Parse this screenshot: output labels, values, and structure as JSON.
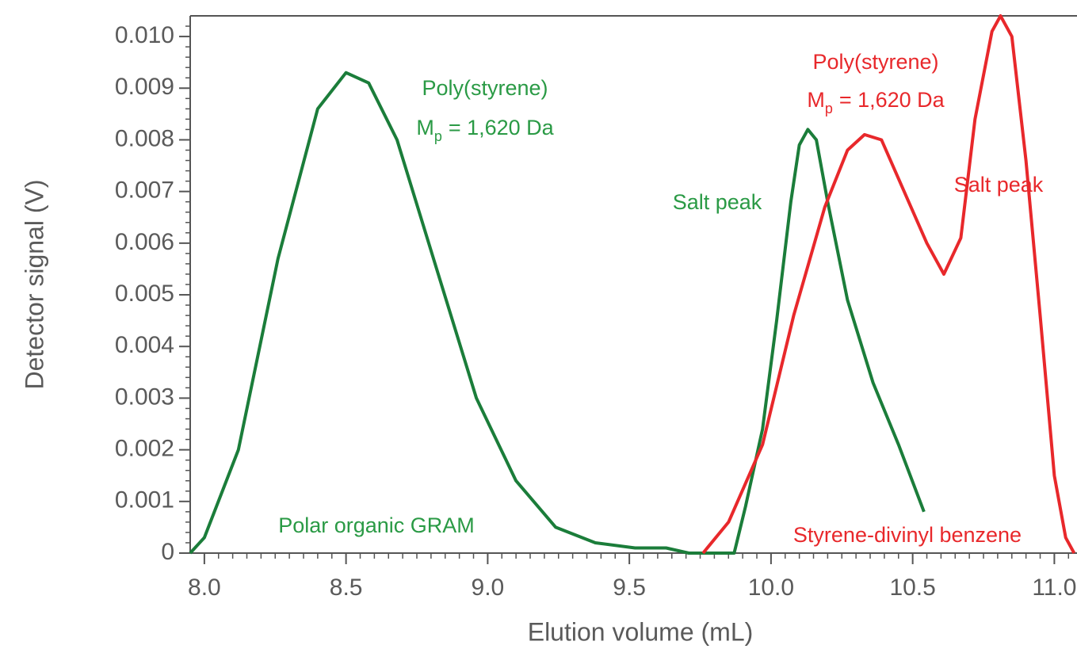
{
  "chart_data": {
    "type": "line",
    "x_label": "Elution volume (mL)",
    "y_label": "Detector signal (V)",
    "xlim": [
      7.95,
      11.08
    ],
    "ylim": [
      0,
      0.0104
    ],
    "xticks": [
      {
        "value": 8.0,
        "label": "8.0"
      },
      8.5,
      {
        "value": 9.0,
        "label": "9.0"
      },
      9.5,
      {
        "value": 10.0,
        "label": "10.0"
      },
      10.5,
      {
        "value": 11.0,
        "label": "11.0"
      }
    ],
    "yticks": [
      0,
      0.001,
      0.002,
      0.003,
      0.004,
      0.005,
      0.006,
      0.007,
      0.008,
      0.009,
      {
        "value": 0.01,
        "label": "0.010"
      }
    ],
    "series": [
      {
        "color": "#1b7d3a",
        "x": [
          7.95,
          8.0,
          8.12,
          8.26,
          8.4,
          8.5,
          8.58,
          8.68,
          8.82,
          8.96,
          9.1,
          9.24,
          9.38,
          9.52,
          9.63,
          9.71,
          9.8,
          9.87,
          9.91,
          9.97,
          10.02,
          10.07,
          10.1,
          10.13,
          10.16,
          10.2,
          10.27,
          10.36,
          10.45,
          10.54
        ],
        "values": [
          0,
          0.0003,
          0.002,
          0.0057,
          0.0086,
          0.0093,
          0.0091,
          0.008,
          0.0055,
          0.003,
          0.0014,
          0.0005,
          0.0002,
          0.0001,
          0.0001,
          0,
          0,
          0,
          0.0009,
          0.0024,
          0.0045,
          0.0068,
          0.0079,
          0.0082,
          0.008,
          0.0068,
          0.0049,
          0.0033,
          0.0021,
          0.0008
        ]
      },
      {
        "color": "#e8282b",
        "x": [
          9.76,
          9.85,
          9.97,
          10.08,
          10.19,
          10.27,
          10.33,
          10.39,
          10.47,
          10.55,
          10.61,
          10.67,
          10.72,
          10.78,
          10.81,
          10.85,
          10.9,
          10.95,
          11.0,
          11.04,
          11.07
        ],
        "values": [
          0,
          0.0006,
          0.0021,
          0.0046,
          0.0067,
          0.0078,
          0.0081,
          0.008,
          0.007,
          0.006,
          0.0054,
          0.0061,
          0.0084,
          0.0101,
          0.0104,
          0.01,
          0.0076,
          0.0046,
          0.0015,
          0.0003,
          0
        ]
      }
    ],
    "annotations": [
      {
        "text": "Poly(styrene)",
        "color": "#2a9a45"
      },
      {
        "text": "M",
        "subscript": "p",
        "after": "= 1,620 Da",
        "color": "#2a9a45"
      },
      {
        "text": "Salt peak",
        "color": "#2a9a45"
      },
      {
        "text": "Polar organic GRAM",
        "color": "#2a9a45"
      },
      {
        "text": "Poly(styrene)",
        "color": "#e8282b"
      },
      {
        "text": "M",
        "subscript": "p",
        "after": "= 1,620 Da",
        "color": "#e8282b"
      },
      {
        "text": "Salt peak",
        "color": "#e8282b"
      },
      {
        "text": "Styrene-divinyl benzene",
        "color": "#e8282b"
      }
    ]
  }
}
